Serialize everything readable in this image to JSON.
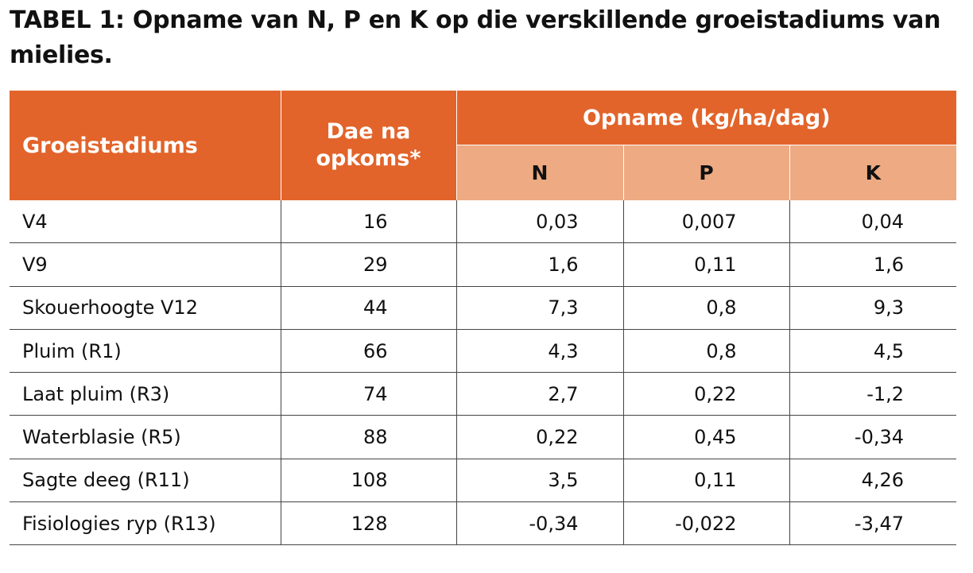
{
  "title": "TABEL 1: Opname van N, P en K op die verskillende groeistadiums van mielies.",
  "headers": {
    "stadium": "Groeistadiums",
    "dae": "Dae na opkoms*",
    "opname": "Opname (kg/ha/dag)",
    "n": "N",
    "p": "P",
    "k": "K"
  },
  "colors": {
    "header_dark": "#e2642a",
    "header_light": "#eeaa82"
  },
  "rows": [
    {
      "stadium": "V4",
      "dae": "16",
      "n": "0,03",
      "p": "0,007",
      "k": "0,04"
    },
    {
      "stadium": "V9",
      "dae": "29",
      "n": "1,6",
      "p": "0,11",
      "k": "1,6"
    },
    {
      "stadium": "Skouerhoogte V12",
      "dae": "44",
      "n": "7,3",
      "p": "0,8",
      "k": "9,3"
    },
    {
      "stadium": "Pluim (R1)",
      "dae": "66",
      "n": "4,3",
      "p": "0,8",
      "k": "4,5"
    },
    {
      "stadium": "Laat pluim (R3)",
      "dae": "74",
      "n": "2,7",
      "p": "0,22",
      "k": "-1,2"
    },
    {
      "stadium": "Waterblasie (R5)",
      "dae": "88",
      "n": "0,22",
      "p": "0,45",
      "k": "-0,34"
    },
    {
      "stadium": "Sagte deeg (R11)",
      "dae": "108",
      "n": "3,5",
      "p": "0,11",
      "k": "4,26"
    },
    {
      "stadium": "Fisiologies ryp (R13)",
      "dae": "128",
      "n": "-0,34",
      "p": "-0,022",
      "k": "-3,47"
    }
  ]
}
